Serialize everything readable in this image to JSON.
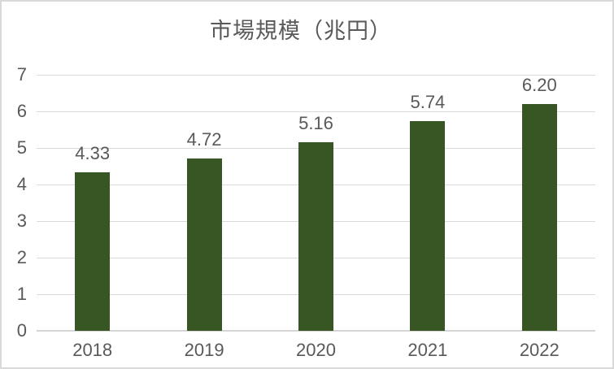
{
  "title": "市場規模（兆円）",
  "colors": {
    "bar": "#375623",
    "text": "#595959",
    "gridline": "#d9d9d9",
    "axis_line": "#d6d6d6",
    "chart_border": "#d9d9d9",
    "background": "#ffffff"
  },
  "chart_data": {
    "type": "bar",
    "title": "市場規模（兆円）",
    "categories": [
      "2018",
      "2019",
      "2020",
      "2021",
      "2022"
    ],
    "values": [
      4.33,
      4.72,
      5.16,
      5.74,
      6.2
    ],
    "data_labels": [
      "4.33",
      "4.72",
      "5.16",
      "5.74",
      "6.20"
    ],
    "xlabel": "",
    "ylabel": "",
    "ylim": [
      0,
      7
    ],
    "yticks": [
      0,
      1,
      2,
      3,
      4,
      5,
      6,
      7
    ],
    "grid": true,
    "legend": false,
    "series_color": "#375623",
    "data_label_position": "outside-end"
  }
}
